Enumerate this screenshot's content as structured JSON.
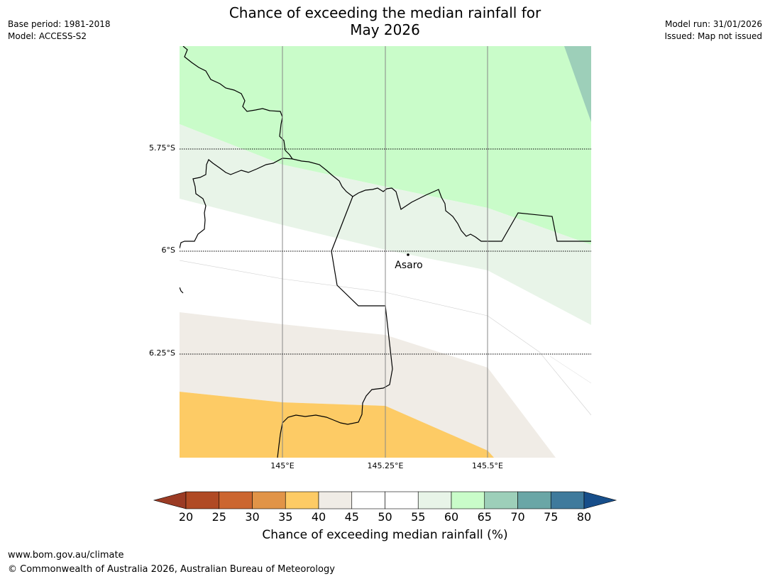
{
  "title": {
    "line1": "Chance of exceeding the median rainfall for",
    "line2": "May 2026"
  },
  "meta": {
    "base_period": "Base period: 1981-2018",
    "model": "Model: ACCESS-S2",
    "model_run": "Model run: 31/01/2026",
    "issued": "Issued: Map not issued"
  },
  "map": {
    "place_label": "Asaro",
    "lat_labels": [
      "5.75°S",
      "6°S",
      "6.25°S"
    ],
    "lon_labels": [
      "145°E",
      "145.25°E",
      "145.5°E"
    ],
    "colors": {
      "band_60_65": "#e8f4e8",
      "band_65_70": "#c9fcc9",
      "band_70_75": "#9dcfb9",
      "band_40_45": "#f0ece6",
      "band_35_40": "#fdcb65"
    }
  },
  "colorbar": {
    "ticks": [
      "20",
      "25",
      "30",
      "35",
      "40",
      "45",
      "50",
      "55",
      "60",
      "65",
      "70",
      "75",
      "80"
    ],
    "colors": [
      "#9b3b24",
      "#b04a24",
      "#cc6630",
      "#e19447",
      "#fdcb65",
      "#f0ece6",
      "#ffffff",
      "#ffffff",
      "#e8f4e8",
      "#c9fcc9",
      "#9dcfb9",
      "#6aa6a6",
      "#3f7a9c",
      "#174e8a"
    ],
    "label": "Chance of exceeding median rainfall (%)"
  },
  "footer": {
    "url": "www.bom.gov.au/climate",
    "copyright": "© Commonwealth of Australia 2026, Australian Bureau of Meteorology"
  }
}
